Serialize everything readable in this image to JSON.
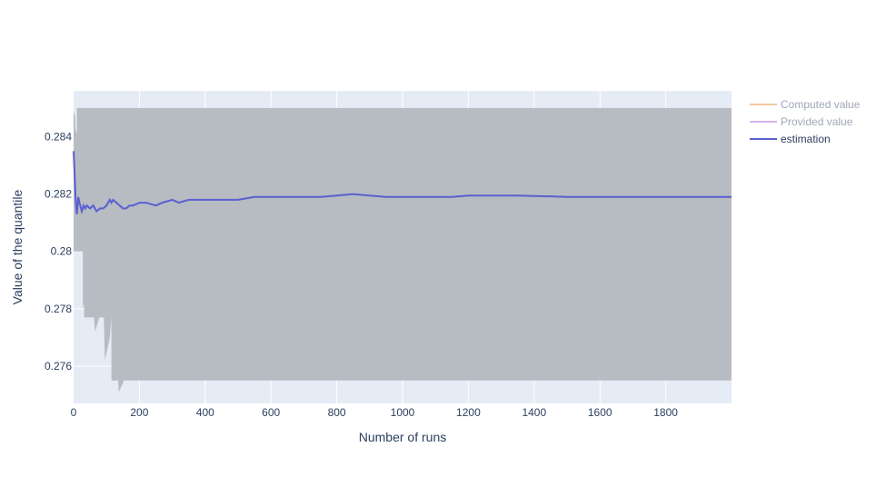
{
  "chart_data": {
    "type": "line",
    "title": "",
    "xlabel": "Number of runs",
    "ylabel": "Value of the quantile",
    "xlim": [
      0,
      2000
    ],
    "ylim": [
      0.2747,
      0.2856
    ],
    "grid": true,
    "legend_position": "right",
    "x_ticks": [
      0,
      200,
      400,
      600,
      800,
      1000,
      1200,
      1400,
      1600,
      1800
    ],
    "x_tick_labels": [
      "0",
      "200",
      "400",
      "600",
      "800",
      "1000",
      "1200",
      "1400",
      "1600",
      "1800"
    ],
    "y_ticks": [
      0.276,
      0.278,
      0.28,
      0.282,
      0.284
    ],
    "y_tick_labels": [
      "0.276",
      "0.278",
      "0.28",
      "0.282",
      "0.284"
    ],
    "series": [
      {
        "name": "Computed value",
        "color": "#f4c9a0",
        "legend_dimmed": true,
        "x": [],
        "y": []
      },
      {
        "name": "Provided value",
        "color": "#d4b3f0",
        "legend_dimmed": true,
        "x": [],
        "y": []
      },
      {
        "name": "estimation",
        "color": "#5a5fd0",
        "x": [
          0,
          3,
          6,
          10,
          14,
          18,
          25,
          30,
          35,
          40,
          50,
          60,
          70,
          80,
          90,
          100,
          110,
          115,
          120,
          130,
          140,
          150,
          160,
          170,
          180,
          200,
          220,
          250,
          270,
          300,
          320,
          350,
          400,
          450,
          500,
          550,
          600,
          650,
          700,
          750,
          800,
          850,
          900,
          950,
          1000,
          1050,
          1100,
          1150,
          1200,
          1250,
          1300,
          1350,
          1400,
          1450,
          1500,
          1550,
          1600,
          1650,
          1700,
          1750,
          1800,
          1850,
          1900,
          1950,
          2000
        ],
        "y": [
          0.2835,
          0.2827,
          0.2818,
          0.2813,
          0.2819,
          0.2817,
          0.2814,
          0.2816,
          0.2815,
          0.2816,
          0.2815,
          0.2816,
          0.2814,
          0.2815,
          0.2815,
          0.2816,
          0.2818,
          0.2817,
          0.2818,
          0.2817,
          0.2816,
          0.2815,
          0.2815,
          0.2816,
          0.2816,
          0.2817,
          0.2817,
          0.2816,
          0.2817,
          0.2818,
          0.2817,
          0.2818,
          0.2818,
          0.2818,
          0.2818,
          0.2819,
          0.2819,
          0.2819,
          0.2819,
          0.2819,
          0.28195,
          0.282,
          0.28195,
          0.2819,
          0.2819,
          0.2819,
          0.2819,
          0.2819,
          0.28195,
          0.28195,
          0.28195,
          0.28195,
          0.28193,
          0.28192,
          0.2819,
          0.2819,
          0.2819,
          0.2819,
          0.2819,
          0.2819,
          0.2819,
          0.2819,
          0.2819,
          0.2819,
          0.2819
        ]
      }
    ],
    "confidence_band": {
      "color": "#b4b8bf",
      "upper": {
        "x": [
          0,
          5,
          5,
          10,
          10,
          2000
        ],
        "y": [
          0.2849,
          0.2847,
          0.2843,
          0.2841,
          0.285,
          0.285
        ]
      },
      "lower": {
        "x": [
          0,
          3,
          4,
          4,
          28,
          28,
          32,
          32,
          42,
          42,
          50,
          50,
          62,
          65,
          78,
          80,
          92,
          95,
          110,
          115,
          115,
          135,
          138,
          153,
          155,
          2000
        ],
        "y": [
          0.28,
          0.28,
          0.28,
          0.28,
          0.28,
          0.278,
          0.2782,
          0.2777,
          0.2777,
          0.2777,
          0.2777,
          0.2777,
          0.2777,
          0.2772,
          0.2777,
          0.2777,
          0.2777,
          0.2762,
          0.277,
          0.2777,
          0.2755,
          0.2755,
          0.2751,
          0.2755,
          0.2755,
          0.2755
        ]
      }
    }
  }
}
